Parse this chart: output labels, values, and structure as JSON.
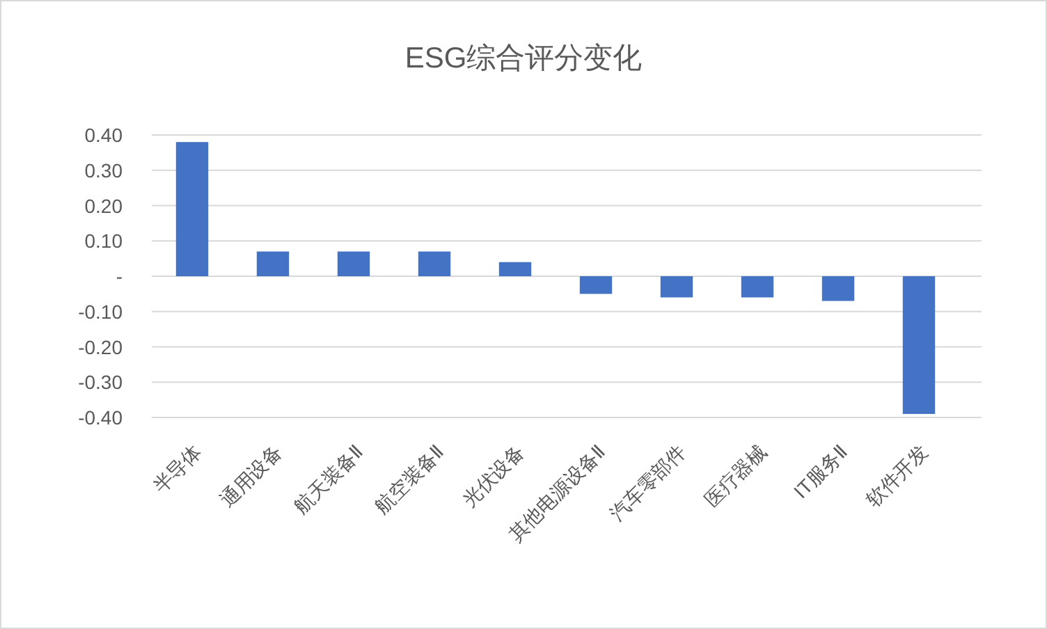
{
  "chart_data": {
    "type": "bar",
    "title": "ESG综合评分变化",
    "categories": [
      "半导体",
      "通用设备",
      "航天装备Ⅱ",
      "航空装备Ⅱ",
      "光伏设备",
      "其他电源设备Ⅱ",
      "汽车零部件",
      "医疗器械",
      "IT服务Ⅱ",
      "软件开发"
    ],
    "values": [
      0.38,
      0.07,
      0.07,
      0.07,
      0.04,
      -0.05,
      -0.06,
      -0.06,
      -0.07,
      -0.39
    ],
    "color": "#4472c4",
    "ylim": [
      -0.4,
      0.4
    ],
    "yticks": [
      {
        "value": 0.4,
        "label": "0.40"
      },
      {
        "value": 0.3,
        "label": "0.30"
      },
      {
        "value": 0.2,
        "label": "0.20"
      },
      {
        "value": 0.1,
        "label": "0.10"
      },
      {
        "value": 0,
        "label": "-"
      },
      {
        "value": -0.1,
        "label": "-0.10"
      },
      {
        "value": -0.2,
        "label": "-0.20"
      },
      {
        "value": -0.3,
        "label": "-0.30"
      },
      {
        "value": -0.4,
        "label": "-0.40"
      }
    ],
    "grid": "y"
  }
}
